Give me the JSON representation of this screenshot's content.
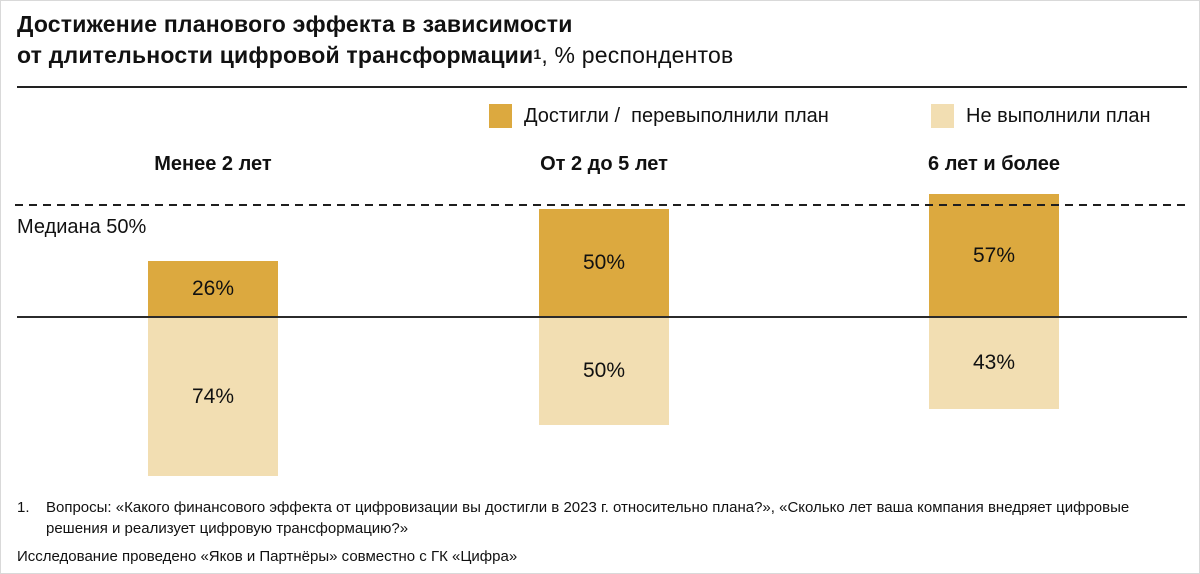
{
  "title": {
    "line1_bold": "Достижение планового эффекта в зависимости",
    "line2_bold": "от длительности цифровой трансформации",
    "line2_superscript": "1",
    "line2_regular": ", % респондентов"
  },
  "legend": [
    {
      "label": "Достигли /  перевыполнили план",
      "color": "#DCA93F"
    },
    {
      "label": "Не выполнили план",
      "color": "#F2DEB2"
    }
  ],
  "chart_data": {
    "type": "bar",
    "subtype": "diverging-stacked-columns",
    "unit": "%",
    "categories": [
      "Менее 2 лет",
      "От 2 до 5 лет",
      "6 лет и более"
    ],
    "series": [
      {
        "name": "Достигли / перевыполнили план",
        "color": "#DCA93F",
        "direction": "up",
        "values": [
          26,
          50,
          57
        ]
      },
      {
        "name": "Не выполнили план",
        "color": "#F2DEB2",
        "direction": "down",
        "values": [
          74,
          50,
          43
        ]
      }
    ],
    "median_line": {
      "label": "Медиана 50%",
      "value": 50,
      "style": "dashed"
    },
    "value_label_format": "{value}%",
    "legend_position": "top-right",
    "grid": false
  },
  "footnotes": {
    "marker": "1.",
    "text": "Вопросы: «Какого финансового эффекта от цифровизации вы достигли в 2023 г. относительно плана?», «Сколько лет ваша компания внедряет цифровые решения и реализует цифровую трансформацию?»",
    "research": "Исследование проведено «Яков и Партнёры» совместно с ГК «Цифра»"
  }
}
